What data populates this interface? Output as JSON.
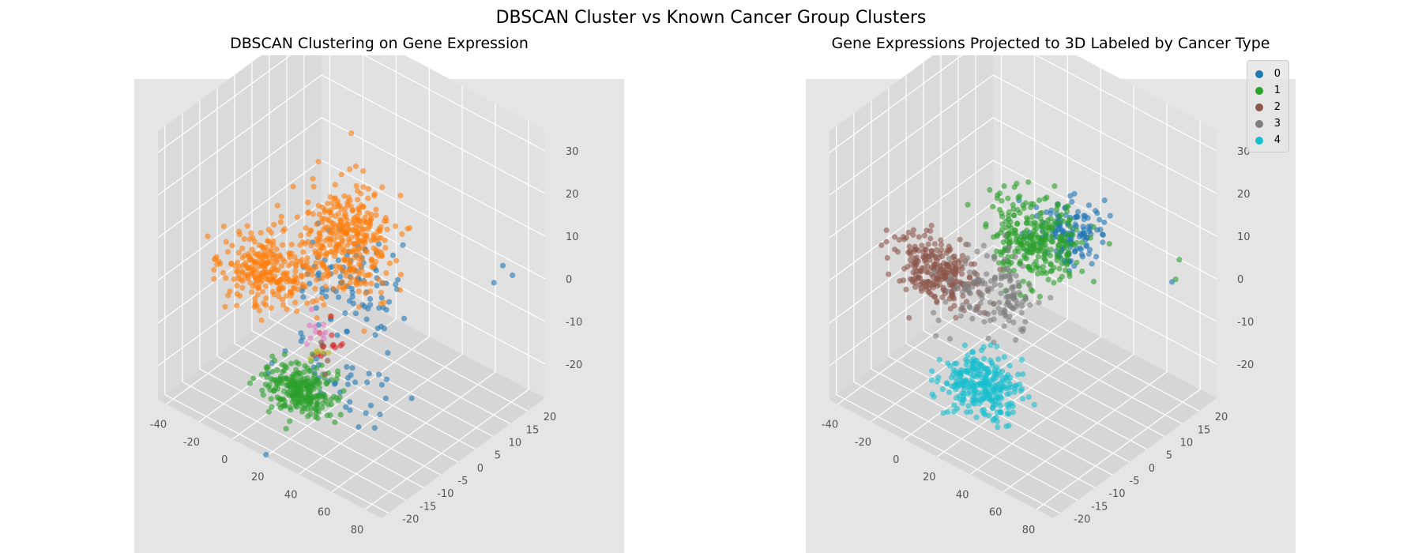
{
  "figure": {
    "title": "DBSCAN Cluster vs Known Cancer Group Clusters"
  },
  "chart_data": [
    {
      "type": "scatter",
      "title": "DBSCAN Clustering on Gene Expression",
      "projection": "3d",
      "xlabel": "",
      "ylabel": "",
      "zlabel": "",
      "x_ticks": [
        -40,
        -20,
        0,
        20,
        40,
        60,
        80
      ],
      "y_ticks": [
        -20,
        -15,
        -10,
        -5,
        0,
        5,
        10,
        15,
        20
      ],
      "z_ticks": [
        -20,
        -10,
        0,
        10,
        20,
        30
      ],
      "xlim": [
        -45,
        90
      ],
      "ylim": [
        -22,
        25
      ],
      "zlim": [
        -28,
        35
      ],
      "grid": true,
      "legend": "none",
      "series": [
        {
          "color": "#1f77b4",
          "clusters": [
            {
              "center": [
                22,
                2,
                -1
              ],
              "spread": [
                14,
                5,
                5
              ],
              "count": 90
            },
            {
              "center": [
                32,
                -6,
                -15
              ],
              "spread": [
                18,
                5,
                5
              ],
              "count": 45
            }
          ],
          "points": [
            [
              85,
              18,
              4
            ],
            [
              78,
              16,
              2
            ],
            [
              75,
              20,
              3
            ]
          ]
        },
        {
          "color": "#ff7f0e",
          "clusters": [
            {
              "center": [
                -22,
                -2,
                -5
              ],
              "spread": [
                12,
                3,
                3
              ],
              "count": 260
            },
            {
              "center": [
                12,
                5,
                5
              ],
              "spread": [
                12,
                5,
                5
              ],
              "count": 360
            }
          ]
        },
        {
          "color": "#2ca02c",
          "clusters": [
            {
              "center": [
                12,
                -8,
                -22
              ],
              "spread": [
                9,
                2.5,
                2
              ],
              "count": 260
            }
          ]
        },
        {
          "color": "#d62728",
          "clusters": [
            {
              "center": [
                16,
                -2,
                -14
              ],
              "spread": [
                3,
                2,
                3
              ],
              "count": 12
            }
          ]
        },
        {
          "color": "#e377c2",
          "clusters": [
            {
              "center": [
                8,
                -2,
                -14
              ],
              "spread": [
                3,
                1.5,
                2
              ],
              "count": 10
            }
          ]
        },
        {
          "color": "#8c564b",
          "clusters": [
            {
              "center": [
                15,
                -3,
                -16
              ],
              "spread": [
                3,
                2,
                2
              ],
              "count": 6
            }
          ]
        },
        {
          "color": "#bcbd22",
          "clusters": [
            {
              "center": [
                12,
                -4,
                -16
              ],
              "spread": [
                2,
                1,
                1
              ],
              "count": 5
            }
          ]
        }
      ]
    },
    {
      "type": "scatter",
      "title": "Gene Expressions Projected to 3D Labeled by Cancer Type",
      "projection": "3d",
      "xlabel": "",
      "ylabel": "",
      "zlabel": "",
      "x_ticks": [
        -40,
        -20,
        0,
        20,
        40,
        60,
        80
      ],
      "y_ticks": [
        -20,
        -15,
        -10,
        -5,
        0,
        5,
        10,
        15,
        20
      ],
      "z_ticks": [
        -20,
        -10,
        0,
        10,
        20,
        30
      ],
      "xlim": [
        -45,
        90
      ],
      "ylim": [
        -22,
        25
      ],
      "zlim": [
        -28,
        35
      ],
      "grid": true,
      "legend": "top-right",
      "series": [
        {
          "name": "0",
          "color": "#1f77b4",
          "clusters": [
            {
              "center": [
                32,
                10,
                8
              ],
              "spread": [
                8,
                3,
                3
              ],
              "count": 140
            }
          ],
          "points": [
            [
              82,
              16,
              3
            ]
          ]
        },
        {
          "name": "1",
          "color": "#2ca02c",
          "clusters": [
            {
              "center": [
                18,
                7,
                5
              ],
              "spread": [
                13,
                4,
                4
              ],
              "count": 300
            }
          ],
          "points": [
            [
              78,
              20,
              5
            ],
            [
              80,
              18,
              2
            ]
          ]
        },
        {
          "name": "2",
          "color": "#8c564b",
          "clusters": [
            {
              "center": [
                -22,
                -2,
                -5
              ],
              "spread": [
                12,
                3,
                3
              ],
              "count": 260
            }
          ]
        },
        {
          "name": "3",
          "color": "#7f7f7f",
          "clusters": [
            {
              "center": [
                8,
                0,
                -5
              ],
              "spread": [
                12,
                4,
                4
              ],
              "count": 150
            }
          ]
        },
        {
          "name": "4",
          "color": "#17becf",
          "clusters": [
            {
              "center": [
                18,
                -8,
                -20
              ],
              "spread": [
                10,
                3,
                3
              ],
              "count": 280
            }
          ]
        }
      ]
    }
  ]
}
